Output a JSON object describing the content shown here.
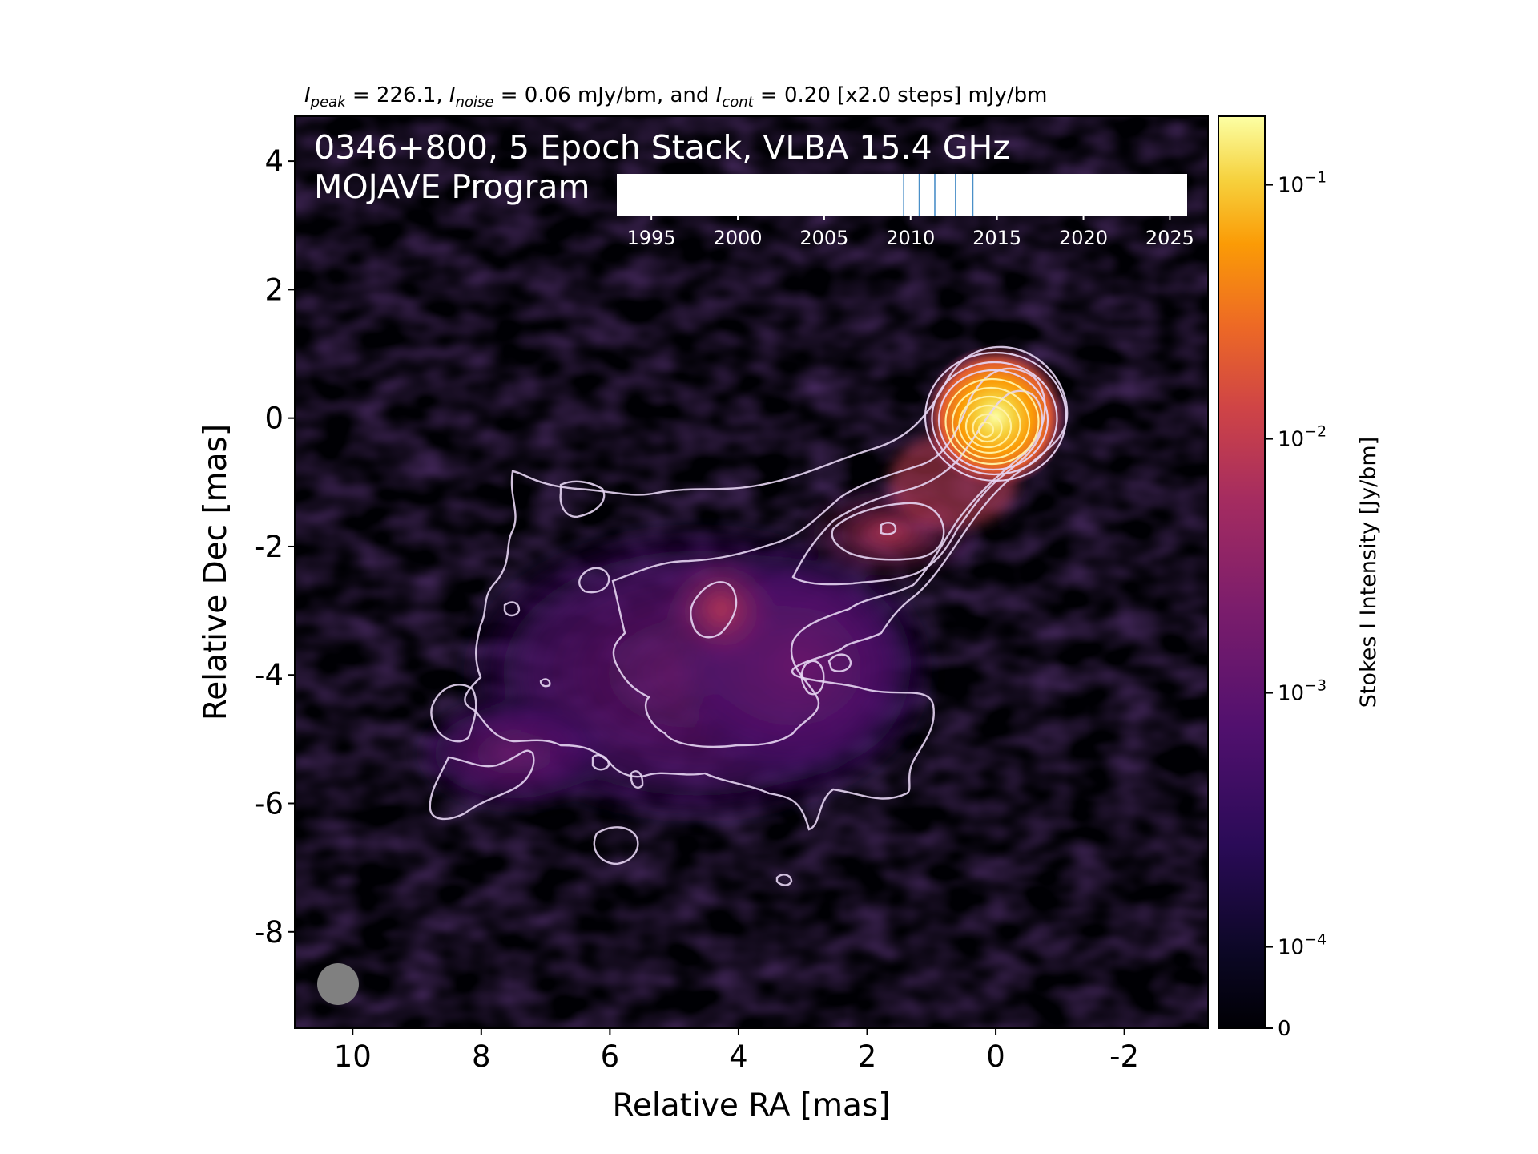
{
  "chart_data": {
    "type": "heatmap",
    "header": {
      "peak_sym": "I",
      "peak_sub": "peak",
      "peak_text": " = 226.1, ",
      "noise_sym": "I",
      "noise_sub": "noise",
      "noise_text": " = 0.06 mJy/bm, and ",
      "cont_sym": "I",
      "cont_sub": "cont",
      "cont_text": " = 0.20 [x2.0 steps] mJy/bm"
    },
    "title_line1": "0346+800, 5 Epoch Stack, VLBA 15.4 GHz",
    "title_line2": "MOJAVE Program",
    "xlabel": "Relative RA [mas]",
    "ylabel": "Relative Dec [mas]",
    "x_axis": {
      "range": [
        10.9,
        -3.3
      ],
      "inverted": true,
      "ticks": [
        10,
        8,
        6,
        4,
        2,
        0,
        -2
      ],
      "tick_labels": [
        "10",
        "8",
        "6",
        "4",
        "2",
        "0",
        "-2"
      ]
    },
    "y_axis": {
      "range": [
        -9.5,
        4.7
      ],
      "ticks": [
        4,
        2,
        0,
        -2,
        -4,
        -6,
        -8
      ],
      "tick_labels": [
        "4",
        "2",
        "0",
        "-2",
        "-4",
        "-6",
        "-8"
      ]
    },
    "colorbar": {
      "label": "Stokes I Intensity [Jy/bm]",
      "colormap": "inferno",
      "scale": "log",
      "tick_labels": [
        {
          "base": "10",
          "exp": "−1",
          "value": 0.1
        },
        {
          "base": "10",
          "exp": "−2",
          "value": 0.01
        },
        {
          "base": "10",
          "exp": "−3",
          "value": 0.001
        },
        {
          "base": "10",
          "exp": "−4",
          "value": 0.0001
        },
        {
          "base": "0",
          "exp": "",
          "value": 0
        }
      ]
    },
    "epoch_timeline": {
      "range": [
        1993,
        2026
      ],
      "tick_labels": [
        "1995",
        "2000",
        "2005",
        "2010",
        "2015",
        "2020",
        "2025"
      ],
      "tick_values": [
        1995,
        2000,
        2005,
        2010,
        2015,
        2020,
        2025
      ],
      "epochs": [
        2009.6,
        2010.5,
        2011.4,
        2012.6,
        2013.6
      ],
      "epoch_color": "#4a8fc8"
    },
    "core_position": [
      0,
      0
    ],
    "contour_levels_mjy": [
      0.2,
      0.4,
      0.8,
      1.6,
      3.2,
      6.4,
      12.8,
      25.6,
      51.2,
      102.4,
      204.8
    ],
    "beam": {
      "position": "bottom-left",
      "color": "#808080"
    },
    "colors": {
      "frame": "#000000",
      "contour_outer": "#e6d5f2",
      "contour_inner": "#fff2a8",
      "title_text": "#ffffff"
    }
  }
}
